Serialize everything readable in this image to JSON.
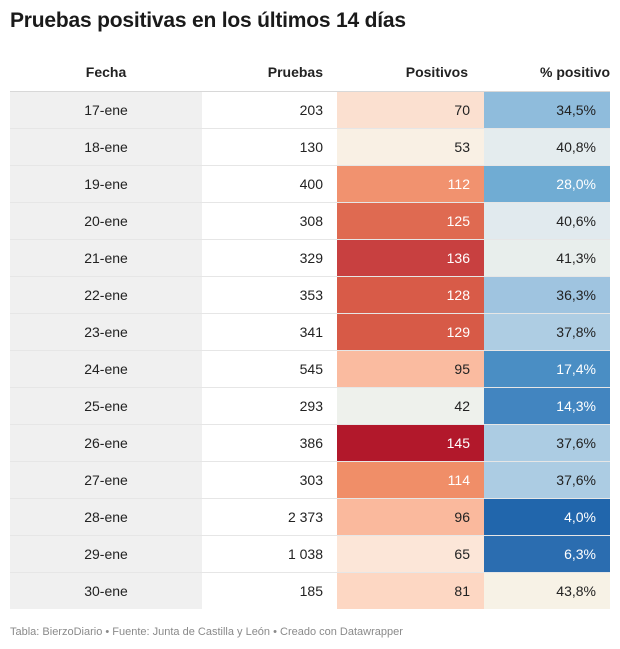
{
  "title": "Pruebas positivas en los últimos 14 días",
  "footer": "Tabla: BierzoDiario • Fuente: Junta de Castilla y León • Creado con Datawrapper",
  "chart_data": {
    "type": "table",
    "columns": [
      "Fecha",
      "Pruebas",
      "Positivos",
      "% positivo"
    ],
    "rows": [
      {
        "fecha": "17-ene",
        "pruebas": "203",
        "positivos": "70",
        "pct": "34,5%",
        "positivos_value": 70,
        "pct_value": 34.5,
        "pos_bg": "#fbe0d0",
        "pct_bg": "#8fbcdc",
        "pos_fg": "#222222",
        "pct_fg": "#222222"
      },
      {
        "fecha": "18-ene",
        "pruebas": "130",
        "positivos": "53",
        "pct": "40,8%",
        "positivos_value": 53,
        "pct_value": 40.8,
        "pos_bg": "#f9f0e4",
        "pct_bg": "#e4ecee",
        "pos_fg": "#222222",
        "pct_fg": "#222222"
      },
      {
        "fecha": "19-ene",
        "pruebas": "400",
        "positivos": "112",
        "pct": "28,0%",
        "positivos_value": 112,
        "pct_value": 28.0,
        "pos_bg": "#f1926f",
        "pct_bg": "#70acd3",
        "pos_fg": "#ffffff",
        "pct_fg": "#ffffff"
      },
      {
        "fecha": "20-ene",
        "pruebas": "308",
        "positivos": "125",
        "pct": "40,6%",
        "positivos_value": 125,
        "pct_value": 40.6,
        "pos_bg": "#df6a51",
        "pct_bg": "#e1eaee",
        "pos_fg": "#ffffff",
        "pct_fg": "#222222"
      },
      {
        "fecha": "21-ene",
        "pruebas": "329",
        "positivos": "136",
        "pct": "41,3%",
        "positivos_value": 136,
        "pct_value": 41.3,
        "pos_bg": "#c84040",
        "pct_bg": "#e8eeec",
        "pos_fg": "#ffffff",
        "pct_fg": "#222222"
      },
      {
        "fecha": "22-ene",
        "pruebas": "353",
        "positivos": "128",
        "pct": "36,3%",
        "positivos_value": 128,
        "pct_value": 36.3,
        "pos_bg": "#d85b48",
        "pct_bg": "#9fc4e0",
        "pos_fg": "#ffffff",
        "pct_fg": "#222222"
      },
      {
        "fecha": "23-ene",
        "pruebas": "341",
        "positivos": "129",
        "pct": "37,8%",
        "positivos_value": 129,
        "pct_value": 37.8,
        "pos_bg": "#d75a47",
        "pct_bg": "#aecde3",
        "pos_fg": "#ffffff",
        "pct_fg": "#222222"
      },
      {
        "fecha": "24-ene",
        "pruebas": "545",
        "positivos": "95",
        "pct": "17,4%",
        "positivos_value": 95,
        "pct_value": 17.4,
        "pos_bg": "#fabba0",
        "pct_bg": "#4a8ec4",
        "pos_fg": "#222222",
        "pct_fg": "#ffffff"
      },
      {
        "fecha": "25-ene",
        "pruebas": "293",
        "positivos": "42",
        "pct": "14,3%",
        "positivos_value": 42,
        "pct_value": 14.3,
        "pos_bg": "#eef1ec",
        "pct_bg": "#4285c0",
        "pos_fg": "#222222",
        "pct_fg": "#ffffff"
      },
      {
        "fecha": "26-ene",
        "pruebas": "386",
        "positivos": "145",
        "pct": "37,6%",
        "positivos_value": 145,
        "pct_value": 37.6,
        "pos_bg": "#b2182b",
        "pct_bg": "#accce3",
        "pos_fg": "#ffffff",
        "pct_fg": "#222222"
      },
      {
        "fecha": "27-ene",
        "pruebas": "303",
        "positivos": "114",
        "pct": "37,6%",
        "positivos_value": 114,
        "pct_value": 37.6,
        "pos_bg": "#f08e68",
        "pct_bg": "#accce3",
        "pos_fg": "#ffffff",
        "pct_fg": "#222222"
      },
      {
        "fecha": "28-ene",
        "pruebas": "2 373",
        "positivos": "96",
        "pct": "4,0%",
        "positivos_value": 96,
        "pct_value": 4.0,
        "pos_bg": "#fab99d",
        "pct_bg": "#2166ac",
        "pos_fg": "#222222",
        "pct_fg": "#ffffff"
      },
      {
        "fecha": "29-ene",
        "pruebas": "1 038",
        "positivos": "65",
        "pct": "6,3%",
        "positivos_value": 65,
        "pct_value": 6.3,
        "pos_bg": "#fce6d8",
        "pct_bg": "#2b6db0",
        "pos_fg": "#222222",
        "pct_fg": "#ffffff"
      },
      {
        "fecha": "30-ene",
        "pruebas": "185",
        "positivos": "81",
        "pct": "43,8%",
        "positivos_value": 81,
        "pct_value": 43.8,
        "pos_bg": "#fdd7c3",
        "pct_bg": "#f7f2e6",
        "pos_fg": "#222222",
        "pct_fg": "#222222"
      }
    ]
  }
}
